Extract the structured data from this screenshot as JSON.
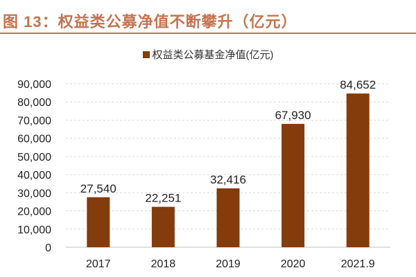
{
  "title": "图 13：权益类公募净值不断攀升（亿元）",
  "chart_data": {
    "type": "bar",
    "categories": [
      "2017",
      "2018",
      "2019",
      "2020",
      "2021.9"
    ],
    "series": [
      {
        "name": "权益类公募基金净值(亿元)",
        "values": [
          27540,
          22251,
          32416,
          67930,
          84652
        ]
      }
    ],
    "data_labels": [
      "27,540",
      "22,251",
      "32,416",
      "67,930",
      "84,652"
    ],
    "yticks": [
      "0",
      "10,000",
      "20,000",
      "30,000",
      "40,000",
      "50,000",
      "60,000",
      "70,000",
      "80,000",
      "90,000"
    ],
    "ylim": [
      0,
      90000
    ],
    "grid": true,
    "legend_position": "top",
    "colors": {
      "bar": "#843c0c",
      "title": "#c5734f",
      "grid": "#d9d9d9"
    }
  }
}
